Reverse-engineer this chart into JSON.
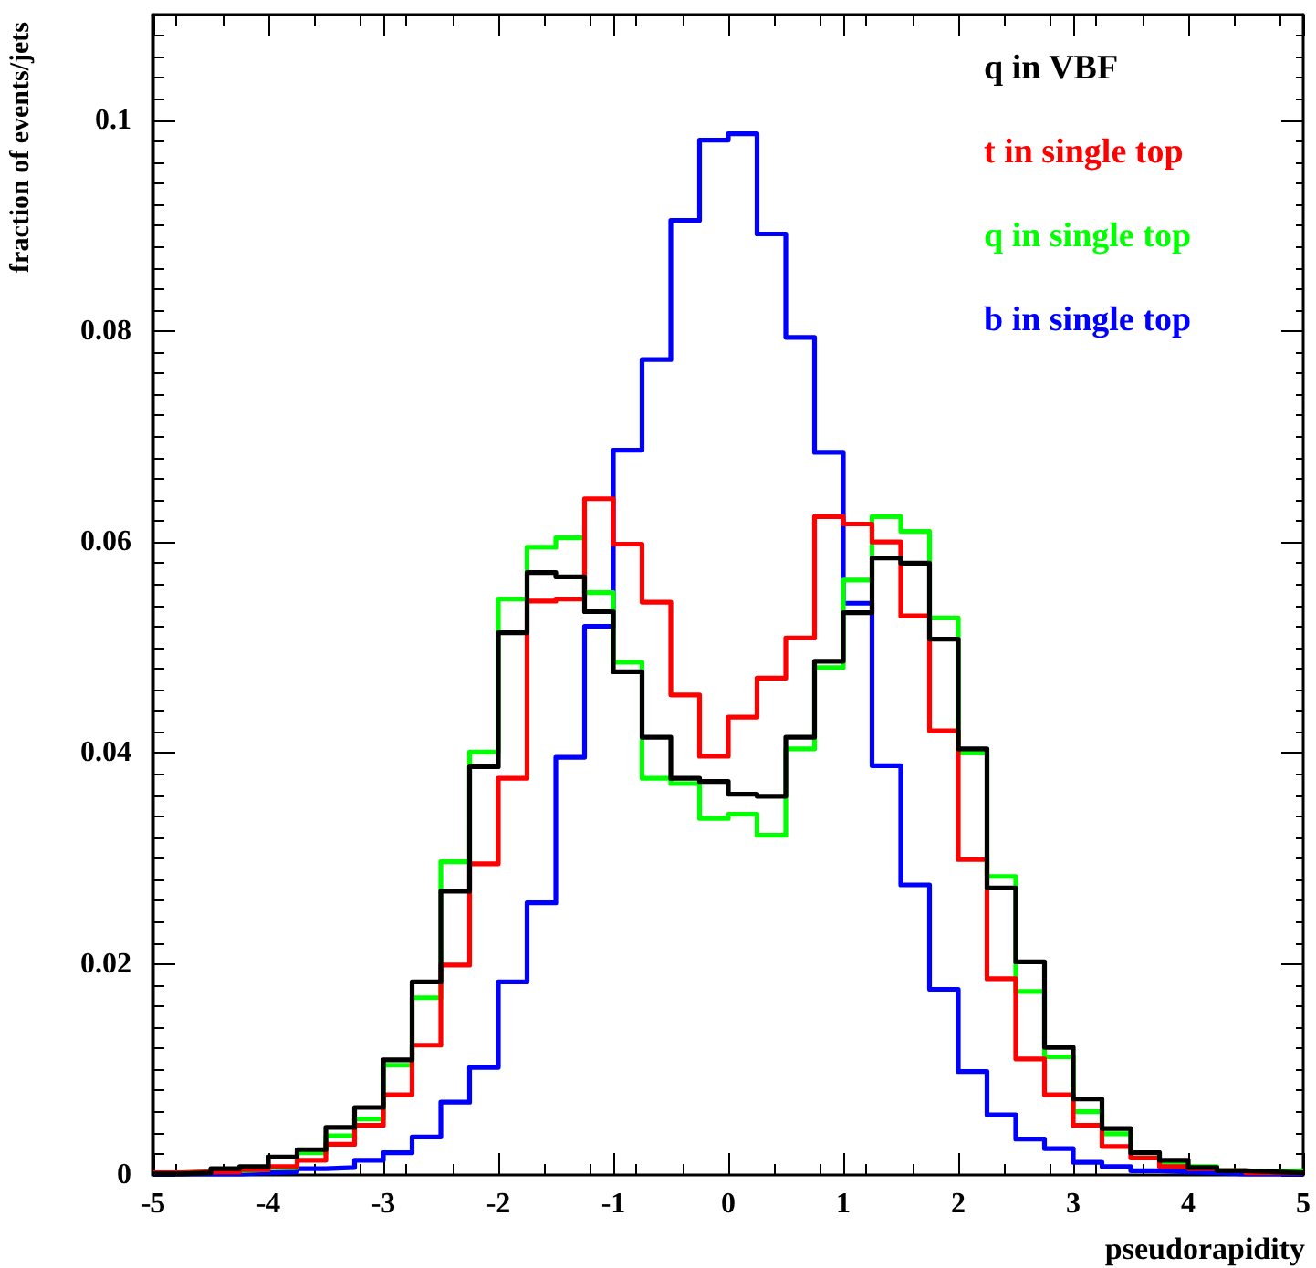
{
  "chart_data": {
    "type": "histogram",
    "xlabel": "pseudorapidity",
    "ylabel": "fraction of events/jets",
    "bins": [
      -5,
      -4.75,
      -4.5,
      -4.25,
      -4,
      -3.75,
      -3.5,
      -3.25,
      -3,
      -2.75,
      -2.5,
      -2.25,
      -2,
      -1.75,
      -1.5,
      -1.25,
      -1,
      -0.75,
      -0.5,
      -0.25,
      0,
      0.25,
      0.5,
      0.75,
      1,
      1.25,
      1.5,
      1.75,
      2,
      2.25,
      2.5,
      2.75,
      3,
      3.25,
      3.5,
      3.75,
      4,
      4.25,
      4.5,
      4.75,
      5
    ],
    "series": [
      {
        "name": "q in VBF",
        "color": "#000000",
        "values": [
          0.0001,
          0.0002,
          0.0006,
          0.0008,
          0.0017,
          0.0024,
          0.0045,
          0.0064,
          0.0109,
          0.0183,
          0.0269,
          0.0387,
          0.0514,
          0.0571,
          0.0567,
          0.0534,
          0.0477,
          0.0415,
          0.0376,
          0.0373,
          0.0361,
          0.0359,
          0.0415,
          0.0487,
          0.0533,
          0.0585,
          0.058,
          0.0508,
          0.0404,
          0.0272,
          0.0202,
          0.0121,
          0.0072,
          0.0044,
          0.0021,
          0.0014,
          0.0007,
          0.0004,
          0.0003,
          0.0002
        ]
      },
      {
        "name": "t in single top",
        "color": "#ff0000",
        "values": [
          0.0002,
          0.0003,
          0.0003,
          0.0005,
          0.0008,
          0.0014,
          0.0029,
          0.0047,
          0.0076,
          0.0123,
          0.0199,
          0.0295,
          0.0376,
          0.0544,
          0.0546,
          0.0641,
          0.0598,
          0.0543,
          0.0455,
          0.0397,
          0.0434,
          0.0471,
          0.0509,
          0.0624,
          0.0617,
          0.06,
          0.053,
          0.0421,
          0.0299,
          0.0186,
          0.011,
          0.0076,
          0.0047,
          0.0027,
          0.0016,
          0.0008,
          0.0006,
          0.0004,
          0.0002,
          0.0002
        ]
      },
      {
        "name": "q in single top",
        "color": "#00ff00",
        "values": [
          0.0002,
          0.0003,
          0.0004,
          0.0005,
          0.0007,
          0.0021,
          0.0037,
          0.0053,
          0.0104,
          0.0168,
          0.0297,
          0.0401,
          0.0546,
          0.0595,
          0.0604,
          0.0552,
          0.0486,
          0.0376,
          0.0371,
          0.0338,
          0.0342,
          0.0322,
          0.0404,
          0.0481,
          0.0564,
          0.0624,
          0.061,
          0.0528,
          0.04,
          0.0283,
          0.0174,
          0.0112,
          0.006,
          0.0039,
          0.0021,
          0.001,
          0.0008,
          0.0004,
          0.0003,
          0.0004
        ]
      },
      {
        "name": "b in single top",
        "color": "#0000ff",
        "values": [
          0.0001,
          0.0001,
          0.0001,
          0.0002,
          0.0003,
          0.0006,
          0.0007,
          0.0014,
          0.0021,
          0.0036,
          0.0069,
          0.0102,
          0.0183,
          0.0258,
          0.0396,
          0.052,
          0.0687,
          0.0773,
          0.0905,
          0.0981,
          0.0987,
          0.0892,
          0.0794,
          0.0685,
          0.0542,
          0.0388,
          0.0275,
          0.0176,
          0.0098,
          0.0057,
          0.0034,
          0.0025,
          0.0012,
          0.0008,
          0.0004,
          0.0003,
          0.0002,
          0.0001,
          0.0001,
          0.0001
        ]
      }
    ],
    "xlim": [
      -5,
      5
    ],
    "xticks": [
      -5,
      -4,
      -3,
      -2,
      -1,
      0,
      1,
      2,
      3,
      4,
      5
    ],
    "ylim": [
      0,
      0.11
    ],
    "yticks": [
      0,
      0.02,
      0.04,
      0.06,
      0.08,
      0.1
    ],
    "legend": "top right",
    "marker": "none",
    "line_style": "solid",
    "grid": false
  }
}
